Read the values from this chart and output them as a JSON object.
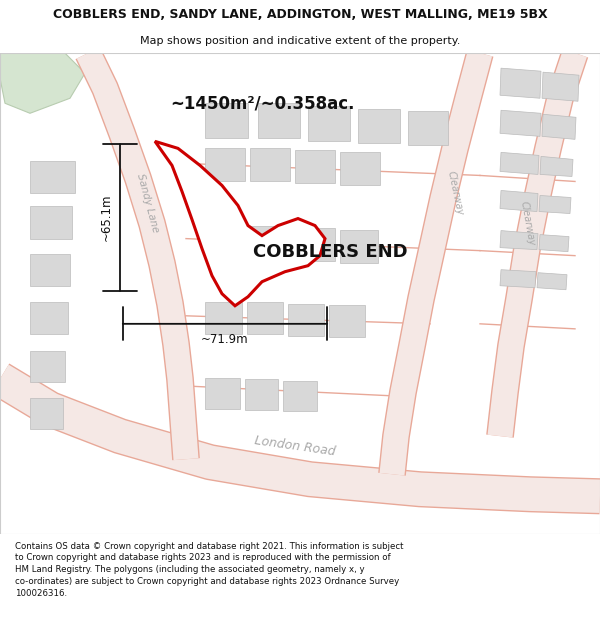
{
  "title": "COBBLERS END, SANDY LANE, ADDINGTON, WEST MALLING, ME19 5BX",
  "subtitle": "Map shows position and indicative extent of the property.",
  "footer": "Contains OS data © Crown copyright and database right 2021. This information is subject\nto Crown copyright and database rights 2023 and is reproduced with the permission of\nHM Land Registry. The polygons (including the associated geometry, namely x, y\nco-ordinates) are subject to Crown copyright and database rights 2023 Ordnance Survey\n100026316.",
  "property_label": "COBBLERS END",
  "area_label": "~1450m²/~0.358ac.",
  "dim_h": "~65.1m",
  "dim_w": "~71.9m",
  "road_label_london1": "London Road",
  "road_label_london2": "London Road",
  "road_label_sandy": "Sandy Lane",
  "road_label_clearway1": "Clearway",
  "road_label_clearway2": "Clearway",
  "map_bg": "#f5f3f0",
  "road_fill": "#f5e8e5",
  "road_edge": "#e8a898",
  "green_fill": "#d5e5d0",
  "green_edge": "#b8ccb0",
  "block_fill": "#d8d8d8",
  "block_edge": "#bbbbbb",
  "prop_edge": "#cc0000",
  "prop_fill": "#ffffff",
  "dim_color": "#111111",
  "text_dark": "#111111",
  "road_text": "#aaaaaa",
  "title_fs": 9.0,
  "subtitle_fs": 8.0,
  "footer_fs": 6.2,
  "area_fs": 12.0,
  "prop_label_fs": 13.0,
  "road_label_fs": 9.0,
  "clearway_fs": 7.0,
  "dim_fs": 8.5
}
